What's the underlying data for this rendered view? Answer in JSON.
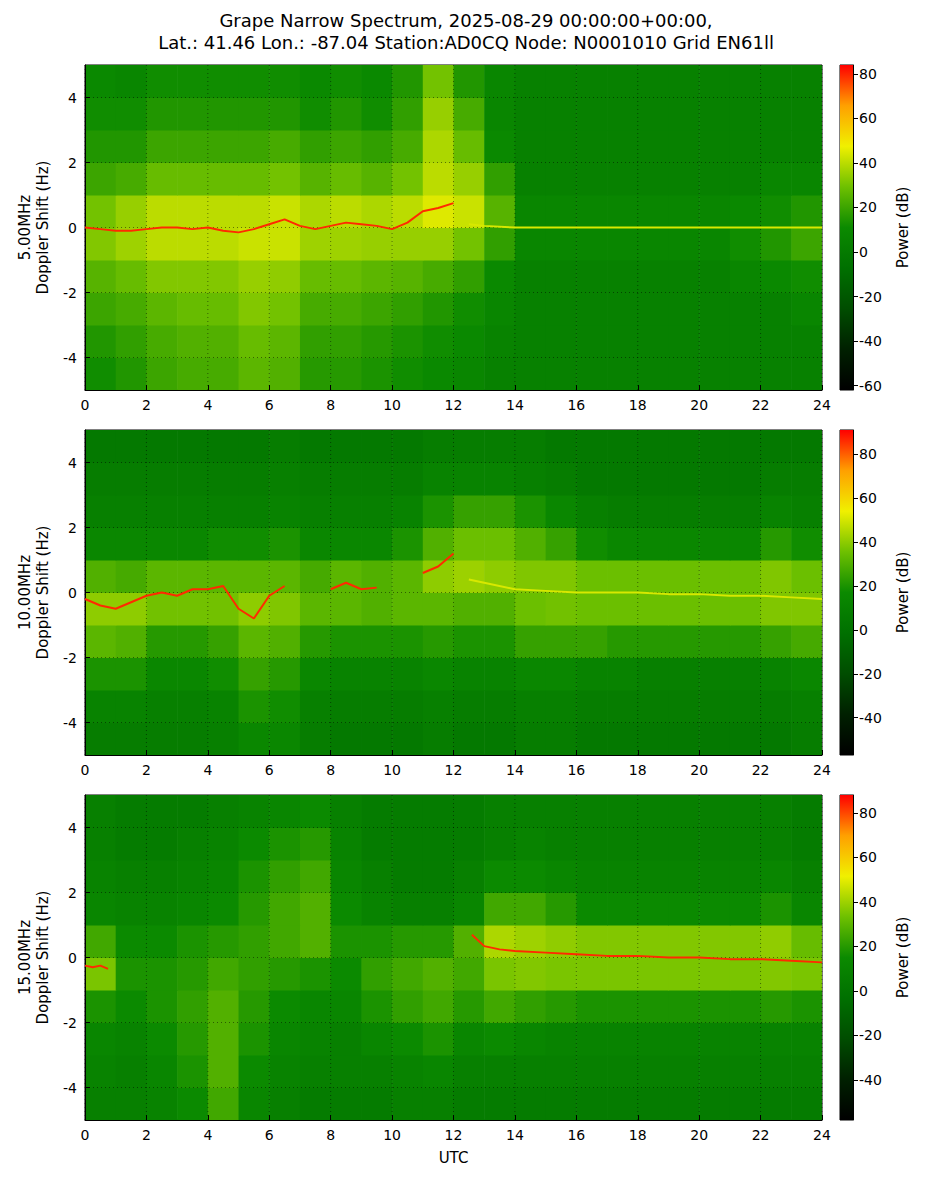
{
  "chart_data": [
    {
      "type": "heatmap",
      "title": "Grape Narrow Spectrum, 2025-08-29 00:00:00+00:00,",
      "subtitle": "Lat.: 41.46 Lon.: -87.04 Station:AD0CQ Node: N0001010 Grid EN61ll",
      "ylabel": "5.00MHz\nDoppler Shift (Hz)",
      "xlim": [
        0,
        24
      ],
      "xticks": [
        0,
        2,
        4,
        6,
        8,
        10,
        12,
        14,
        16,
        18,
        20,
        22,
        24
      ],
      "ylim": [
        -5,
        5
      ],
      "yticks": [
        -4,
        -2,
        0,
        2,
        4
      ],
      "grid": true,
      "time_bins": [
        0,
        1,
        2,
        3,
        4,
        5,
        6,
        7,
        8,
        9,
        10,
        11,
        12,
        13,
        14,
        15,
        16,
        17,
        18,
        19,
        20,
        21,
        22,
        23,
        24
      ],
      "doppler_bins": [
        -5,
        -4,
        -3,
        -2,
        -1,
        0,
        1,
        2,
        3,
        4,
        5
      ],
      "power": [
        [
          12,
          15,
          20,
          22,
          22,
          26,
          24,
          16,
          16,
          14,
          12,
          10,
          8,
          5,
          5,
          5,
          5,
          5,
          5,
          5,
          5,
          5,
          5,
          5
        ],
        [
          15,
          18,
          22,
          24,
          24,
          28,
          26,
          18,
          18,
          16,
          14,
          12,
          10,
          6,
          5,
          5,
          5,
          5,
          5,
          5,
          5,
          5,
          5,
          5
        ],
        [
          20,
          22,
          26,
          28,
          28,
          32,
          30,
          22,
          22,
          20,
          18,
          15,
          12,
          8,
          5,
          5,
          5,
          5,
          5,
          5,
          5,
          5,
          5,
          8
        ],
        [
          25,
          28,
          32,
          32,
          32,
          35,
          34,
          28,
          28,
          26,
          25,
          22,
          18,
          10,
          5,
          5,
          5,
          5,
          5,
          5,
          5,
          8,
          10,
          12
        ],
        [
          32,
          36,
          40,
          40,
          40,
          42,
          42,
          36,
          36,
          35,
          35,
          35,
          30,
          18,
          8,
          8,
          8,
          8,
          8,
          8,
          8,
          12,
          15,
          20
        ],
        [
          30,
          35,
          40,
          40,
          40,
          40,
          42,
          38,
          40,
          38,
          40,
          45,
          42,
          25,
          8,
          8,
          8,
          8,
          8,
          8,
          8,
          10,
          12,
          15
        ],
        [
          20,
          22,
          28,
          28,
          28,
          28,
          30,
          25,
          28,
          25,
          30,
          40,
          35,
          18,
          5,
          5,
          5,
          5,
          5,
          5,
          5,
          5,
          8,
          8
        ],
        [
          15,
          15,
          20,
          20,
          20,
          20,
          22,
          18,
          20,
          18,
          22,
          38,
          28,
          10,
          5,
          5,
          5,
          5,
          5,
          5,
          5,
          5,
          5,
          5
        ],
        [
          12,
          12,
          15,
          15,
          15,
          15,
          15,
          12,
          15,
          12,
          18,
          35,
          22,
          8,
          5,
          5,
          5,
          5,
          5,
          5,
          5,
          5,
          5,
          5
        ],
        [
          10,
          8,
          12,
          12,
          12,
          12,
          12,
          10,
          12,
          10,
          15,
          30,
          15,
          8,
          5,
          5,
          5,
          5,
          5,
          5,
          5,
          5,
          5,
          5
        ]
      ],
      "colorbar": {
        "label": "Power (dB)",
        "range": [
          -62,
          84
        ],
        "ticks": [
          -60,
          -40,
          -20,
          0,
          20,
          40,
          60,
          80
        ]
      },
      "traces": [
        {
          "color": "#ff2a00",
          "x": [
            0,
            0.5,
            1,
            1.5,
            2,
            2.5,
            3,
            3.5,
            4,
            4.5,
            5,
            5.5,
            6,
            6.5,
            7,
            7.5,
            8,
            8.5,
            9,
            9.5,
            10,
            10.5,
            11,
            11.5,
            12
          ],
          "values": [
            0,
            -0.05,
            -0.1,
            -0.1,
            -0.05,
            0,
            0,
            -0.05,
            0,
            -0.1,
            -0.15,
            -0.05,
            0.1,
            0.25,
            0.05,
            -0.05,
            0.05,
            0.15,
            0.1,
            0.05,
            -0.05,
            0.15,
            0.5,
            0.6,
            0.75
          ]
        },
        {
          "color": "#d8e800",
          "x": [
            12.5,
            13,
            14,
            16,
            18,
            20,
            22,
            24
          ],
          "values": [
            0.1,
            0.05,
            0,
            0,
            0,
            0,
            0,
            0
          ]
        }
      ]
    },
    {
      "type": "heatmap",
      "ylabel": "10.00MHz\nDoppler Shift (Hz)",
      "xlim": [
        0,
        24
      ],
      "xticks": [
        0,
        2,
        4,
        6,
        8,
        10,
        12,
        14,
        16,
        18,
        20,
        22,
        24
      ],
      "ylim": [
        -5,
        5
      ],
      "yticks": [
        -4,
        -2,
        0,
        2,
        4
      ],
      "grid": true,
      "time_bins": [
        0,
        1,
        2,
        3,
        4,
        5,
        6,
        7,
        8,
        9,
        10,
        11,
        12,
        13,
        14,
        15,
        16,
        17,
        18,
        19,
        20,
        21,
        22,
        23,
        24
      ],
      "doppler_bins": [
        -5,
        -4,
        -3,
        -2,
        -1,
        0,
        1,
        2,
        3,
        4,
        5
      ],
      "power": [
        [
          8,
          8,
          8,
          8,
          10,
          15,
          15,
          8,
          5,
          5,
          5,
          8,
          5,
          5,
          8,
          8,
          5,
          5,
          5,
          5,
          5,
          5,
          5,
          8
        ],
        [
          12,
          12,
          10,
          10,
          12,
          20,
          18,
          10,
          8,
          8,
          8,
          10,
          8,
          8,
          10,
          10,
          8,
          8,
          8,
          8,
          8,
          8,
          8,
          10
        ],
        [
          20,
          20,
          15,
          15,
          18,
          25,
          22,
          15,
          12,
          12,
          12,
          15,
          12,
          12,
          15,
          15,
          12,
          12,
          10,
          10,
          10,
          10,
          12,
          15
        ],
        [
          32,
          30,
          22,
          22,
          25,
          32,
          30,
          22,
          20,
          20,
          20,
          22,
          20,
          20,
          25,
          25,
          25,
          22,
          22,
          22,
          22,
          22,
          25,
          28
        ],
        [
          40,
          40,
          36,
          36,
          36,
          40,
          38,
          32,
          32,
          30,
          32,
          32,
          30,
          30,
          35,
          36,
          35,
          35,
          35,
          35,
          35,
          35,
          38,
          38
        ],
        [
          30,
          28,
          32,
          32,
          32,
          32,
          32,
          28,
          32,
          30,
          32,
          40,
          42,
          40,
          38,
          38,
          35,
          35,
          35,
          35,
          35,
          35,
          38,
          35
        ],
        [
          15,
          15,
          15,
          15,
          18,
          18,
          20,
          15,
          15,
          15,
          20,
          30,
          35,
          35,
          30,
          25,
          18,
          15,
          15,
          15,
          15,
          15,
          22,
          18
        ],
        [
          10,
          10,
          10,
          10,
          10,
          10,
          12,
          10,
          10,
          10,
          12,
          20,
          25,
          25,
          20,
          15,
          10,
          8,
          8,
          8,
          8,
          8,
          12,
          10
        ],
        [
          8,
          8,
          8,
          8,
          8,
          8,
          10,
          8,
          8,
          8,
          8,
          12,
          12,
          12,
          10,
          8,
          5,
          5,
          5,
          5,
          5,
          5,
          8,
          8
        ],
        [
          5,
          5,
          5,
          5,
          5,
          5,
          8,
          5,
          5,
          5,
          5,
          8,
          8,
          8,
          8,
          5,
          5,
          5,
          5,
          5,
          5,
          5,
          5,
          5
        ]
      ],
      "colorbar": {
        "label": "Power (dB)",
        "range": [
          -57,
          91
        ],
        "ticks": [
          -40,
          -20,
          0,
          20,
          40,
          60,
          80
        ]
      },
      "traces": [
        {
          "color": "#ff2a00",
          "x": [
            0,
            0.5,
            1,
            1.5,
            2,
            2.5,
            3,
            3.5,
            4,
            4.5,
            5,
            5.5,
            6,
            6.5
          ],
          "values": [
            -0.2,
            -0.4,
            -0.5,
            -0.3,
            -0.1,
            0,
            -0.1,
            0.1,
            0.1,
            0.2,
            -0.5,
            -0.8,
            -0.1,
            0.2
          ]
        },
        {
          "color": "#ff2a00",
          "x": [
            8,
            8.5,
            9,
            9.5
          ],
          "values": [
            0.1,
            0.3,
            0.1,
            0.15
          ]
        },
        {
          "color": "#ff2a00",
          "x": [
            11,
            11.5,
            12
          ],
          "values": [
            0.6,
            0.8,
            1.2
          ]
        },
        {
          "color": "#d8e800",
          "x": [
            12.5,
            13,
            14,
            15,
            16,
            17,
            18,
            19,
            20,
            21,
            22,
            23,
            24
          ],
          "values": [
            0.4,
            0.3,
            0.1,
            0.05,
            0,
            0,
            0,
            -0.05,
            -0.05,
            -0.1,
            -0.1,
            -0.15,
            -0.2
          ]
        }
      ]
    },
    {
      "type": "heatmap",
      "ylabel": "15.00MHz\nDoppler Shift (Hz)",
      "xlabel": "UTC",
      "xlim": [
        0,
        24
      ],
      "xticks": [
        0,
        2,
        4,
        6,
        8,
        10,
        12,
        14,
        16,
        18,
        20,
        22,
        24
      ],
      "ylim": [
        -5,
        5
      ],
      "yticks": [
        -4,
        -2,
        0,
        2,
        4
      ],
      "grid": true,
      "time_bins": [
        0,
        1,
        2,
        3,
        4,
        5,
        6,
        7,
        8,
        9,
        10,
        11,
        12,
        13,
        14,
        15,
        16,
        17,
        18,
        19,
        20,
        21,
        22,
        23,
        24
      ],
      "doppler_bins": [
        -5,
        -4,
        -3,
        -2,
        -1,
        0,
        1,
        2,
        3,
        4,
        5
      ],
      "power": [
        [
          8,
          8,
          10,
          15,
          25,
          12,
          8,
          5,
          5,
          5,
          8,
          8,
          5,
          5,
          5,
          5,
          5,
          5,
          5,
          5,
          5,
          5,
          5,
          5
        ],
        [
          10,
          8,
          12,
          18,
          28,
          15,
          10,
          8,
          8,
          8,
          10,
          12,
          8,
          8,
          8,
          8,
          8,
          8,
          8,
          8,
          8,
          8,
          8,
          8
        ],
        [
          12,
          10,
          15,
          20,
          28,
          18,
          12,
          10,
          8,
          12,
          15,
          18,
          12,
          15,
          12,
          10,
          10,
          10,
          10,
          10,
          10,
          10,
          10,
          10
        ],
        [
          18,
          15,
          18,
          22,
          28,
          20,
          15,
          12,
          12,
          18,
          22,
          25,
          20,
          25,
          22,
          20,
          18,
          18,
          18,
          18,
          18,
          18,
          20,
          18
        ],
        [
          35,
          18,
          18,
          20,
          25,
          22,
          20,
          18,
          15,
          22,
          25,
          28,
          25,
          35,
          36,
          35,
          35,
          35,
          35,
          35,
          35,
          35,
          36,
          35
        ],
        [
          25,
          15,
          15,
          18,
          20,
          22,
          25,
          28,
          18,
          18,
          20,
          20,
          28,
          42,
          40,
          38,
          36,
          36,
          36,
          36,
          36,
          36,
          38,
          32
        ],
        [
          12,
          10,
          10,
          12,
          15,
          20,
          25,
          28,
          15,
          10,
          8,
          8,
          12,
          25,
          25,
          20,
          15,
          15,
          15,
          15,
          15,
          15,
          18,
          12
        ],
        [
          10,
          8,
          8,
          10,
          12,
          18,
          22,
          25,
          12,
          8,
          5,
          5,
          8,
          15,
          15,
          12,
          10,
          10,
          10,
          10,
          10,
          10,
          12,
          8
        ],
        [
          8,
          5,
          5,
          8,
          10,
          15,
          18,
          20,
          10,
          5,
          5,
          5,
          5,
          8,
          10,
          8,
          8,
          8,
          8,
          8,
          8,
          8,
          8,
          5
        ],
        [
          8,
          5,
          5,
          5,
          8,
          10,
          12,
          15,
          8,
          5,
          5,
          5,
          5,
          8,
          8,
          8,
          8,
          8,
          8,
          8,
          8,
          8,
          8,
          5
        ]
      ],
      "colorbar": {
        "label": "Power (dB)",
        "range": [
          -58,
          88
        ],
        "ticks": [
          -40,
          -20,
          0,
          20,
          40,
          60,
          80
        ]
      },
      "traces": [
        {
          "color": "#ff2a00",
          "x": [
            0,
            0.25,
            0.5,
            0.75
          ],
          "values": [
            -0.25,
            -0.3,
            -0.25,
            -0.35
          ]
        },
        {
          "color": "#ff2a00",
          "x": [
            12.6,
            13,
            13.5,
            14,
            15,
            16,
            17,
            18,
            19,
            20,
            21,
            22,
            23,
            24
          ],
          "values": [
            0.7,
            0.35,
            0.25,
            0.2,
            0.15,
            0.1,
            0.05,
            0.05,
            0,
            0,
            -0.05,
            -0.05,
            -0.1,
            -0.15
          ]
        }
      ]
    }
  ]
}
